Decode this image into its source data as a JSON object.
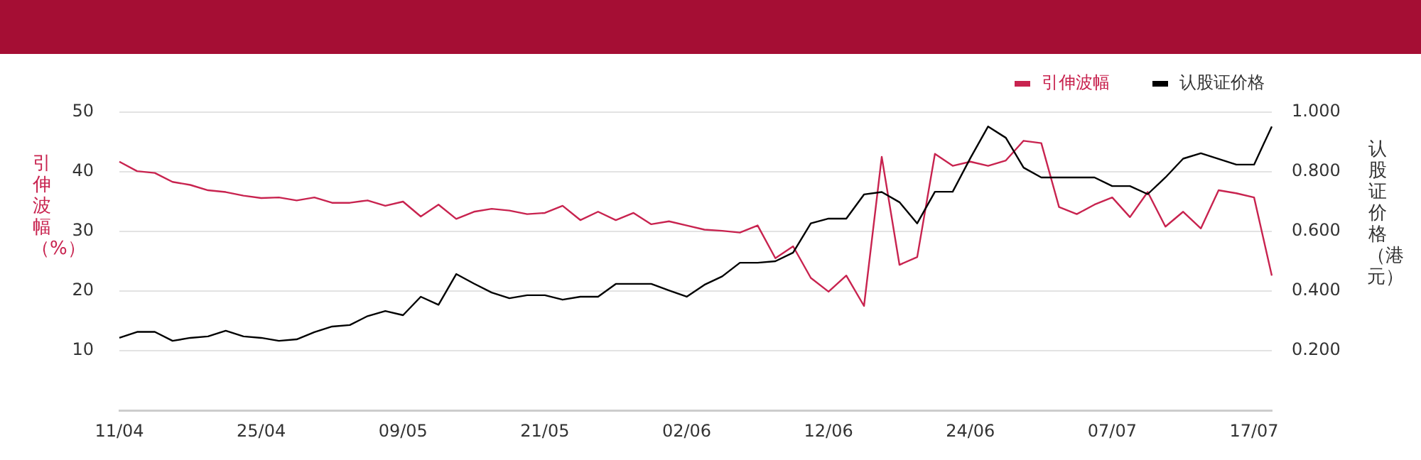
{
  "chart_data": {
    "type": "line",
    "categories": [
      "11/04",
      null,
      null,
      null,
      null,
      null,
      null,
      null,
      "25/04",
      null,
      null,
      null,
      null,
      null,
      null,
      null,
      "09/05",
      null,
      null,
      null,
      null,
      null,
      null,
      null,
      "21/05",
      null,
      null,
      null,
      null,
      null,
      null,
      null,
      "02/06",
      null,
      null,
      null,
      null,
      null,
      null,
      null,
      "12/06",
      null,
      null,
      null,
      null,
      null,
      null,
      null,
      "24/06",
      null,
      null,
      null,
      null,
      null,
      null,
      null,
      "07/07",
      null,
      null,
      null,
      null,
      null,
      null,
      null,
      "17/07",
      null
    ],
    "series": [
      {
        "name": "引伸波幅",
        "color": "#c8234f",
        "axis": "y",
        "values": [
          41.7,
          40.1,
          39.8,
          38.3,
          37.8,
          36.9,
          36.6,
          36.0,
          35.6,
          35.7,
          35.2,
          35.7,
          34.8,
          34.8,
          35.2,
          34.3,
          35.0,
          32.5,
          34.5,
          32.1,
          33.3,
          33.8,
          33.5,
          32.9,
          33.1,
          34.3,
          31.9,
          33.3,
          31.9,
          33.1,
          31.2,
          31.7,
          31.0,
          30.3,
          30.1,
          29.8,
          31.0,
          25.5,
          27.5,
          22.2,
          19.9,
          22.6,
          17.5,
          42.5,
          24.4,
          25.7,
          43.0,
          41.0,
          41.7,
          41.0,
          41.9,
          45.2,
          44.8,
          34.1,
          32.9,
          34.5,
          35.7,
          32.4,
          36.6,
          30.8,
          33.3,
          30.5,
          36.9,
          36.4,
          35.7,
          22.6
        ]
      },
      {
        "name": "认股证价格",
        "color": "#000000",
        "axis": "y2",
        "values": [
          0.243,
          0.263,
          0.263,
          0.233,
          0.243,
          0.248,
          0.267,
          0.248,
          0.243,
          0.233,
          0.238,
          0.262,
          0.281,
          0.286,
          0.316,
          0.333,
          0.319,
          0.381,
          0.354,
          0.457,
          0.425,
          0.395,
          0.376,
          0.386,
          0.386,
          0.371,
          0.381,
          0.381,
          0.424,
          0.424,
          0.424,
          0.402,
          0.381,
          0.421,
          0.449,
          0.495,
          0.495,
          0.5,
          0.529,
          0.627,
          0.643,
          0.643,
          0.724,
          0.732,
          0.698,
          0.627,
          0.733,
          0.733,
          0.846,
          0.952,
          0.914,
          0.814,
          0.781,
          0.781,
          0.781,
          0.781,
          0.752,
          0.752,
          0.725,
          0.781,
          0.844,
          0.862,
          0.843,
          0.824,
          0.824,
          0.952
        ]
      }
    ],
    "ylabel": "引伸波幅（%）",
    "y2label": "认股证价格（港元）",
    "ylim": [
      0,
      50
    ],
    "yticks": [
      10,
      20,
      30,
      40,
      50
    ],
    "y2lim": [
      0,
      1
    ],
    "y2ticks": [
      {
        "value": 0.2,
        "label": "0.200"
      },
      {
        "value": 0.4,
        "label": "0.400"
      },
      {
        "value": 0.6,
        "label": "0.600"
      },
      {
        "value": 0.8,
        "label": "0.800"
      },
      {
        "value": 1,
        "label": "1.000"
      }
    ],
    "grid": "y",
    "legend": "top right",
    "marker": "none"
  }
}
